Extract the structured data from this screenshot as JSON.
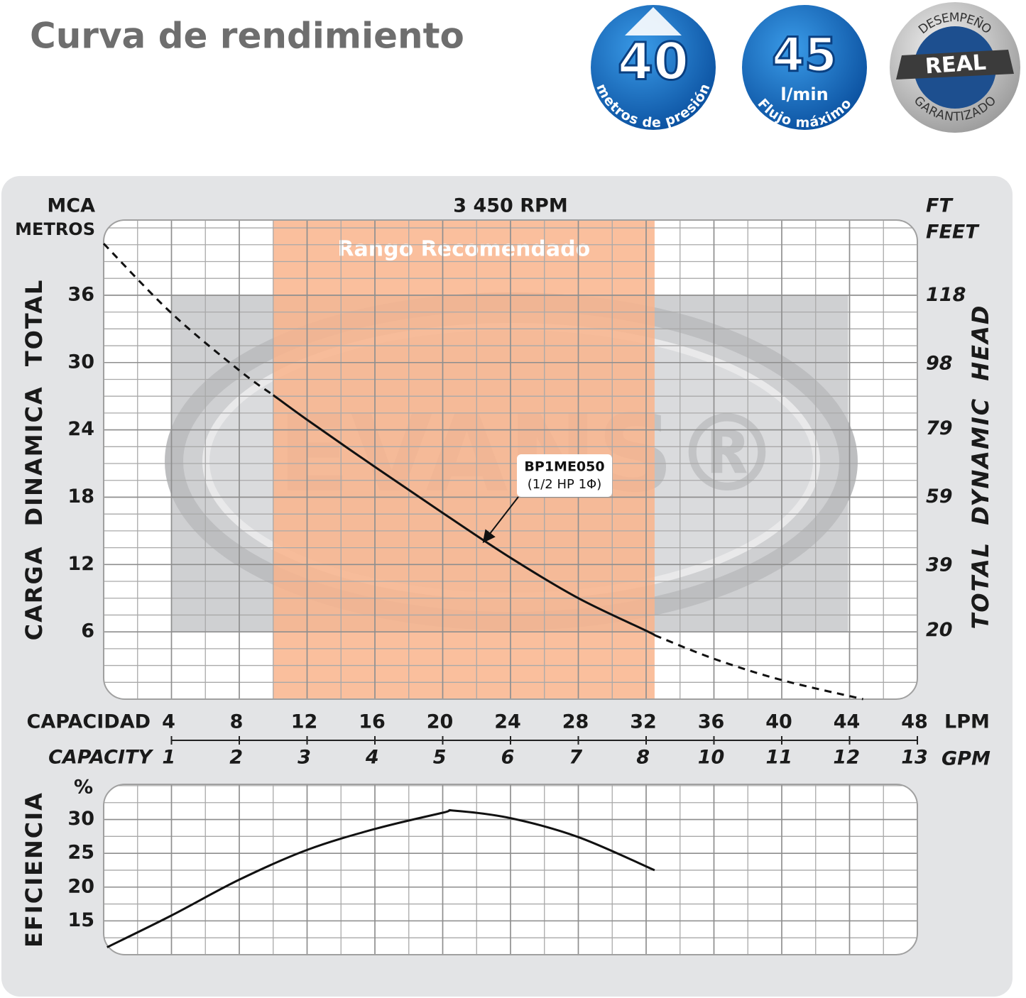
{
  "title": "Curva de rendimiento",
  "badges": [
    {
      "value": "40",
      "caption": "metros de presión"
    },
    {
      "value": "45",
      "unit": "l/min",
      "caption": "Flujo máximo"
    },
    {
      "top": "DESEMPEÑO",
      "value": "REAL",
      "caption": "GARANTIZADO"
    }
  ],
  "chart_data": [
    {
      "type": "line",
      "title": "3 450 RPM",
      "y_unit": "MCA",
      "y_unit_sub": "METROS",
      "ylabel": "CARGA DINAMICA TOTAL",
      "y2_unit": "FT",
      "y2_unit_sub": "FEET",
      "y2label": "TOTAL DYNAMIC HEAD",
      "xlabel": "CAPACIDAD",
      "x_unit": "LPM",
      "x2label": "CAPACITY",
      "x2_unit": "GPM",
      "xlim": [
        0,
        48
      ],
      "xticks": [
        4,
        8,
        12,
        16,
        20,
        24,
        28,
        32,
        36,
        40,
        44,
        48
      ],
      "x2lim": [
        0,
        12.68
      ],
      "x2ticks": [
        {
          "value": 1.06,
          "label": "1"
        },
        {
          "value": 2.11,
          "label": "2"
        },
        {
          "value": 3.17,
          "label": "3"
        },
        {
          "value": 4.23,
          "label": "4"
        },
        {
          "value": 5.28,
          "label": "5"
        },
        {
          "value": 6.34,
          "label": "6"
        },
        {
          "value": 7.4,
          "label": "7"
        },
        {
          "value": 8.45,
          "label": "8"
        },
        {
          "value": 9.51,
          "label": "10"
        },
        {
          "value": 10.57,
          "label": "11"
        },
        {
          "value": 11.62,
          "label": "12"
        },
        {
          "value": 12.68,
          "label": "13"
        }
      ],
      "ylim": [
        0,
        42.7
      ],
      "yticks": [
        6,
        12,
        18,
        24,
        30,
        36
      ],
      "y2lim": [
        0,
        140.1
      ],
      "y2ticks": [
        20,
        39,
        59,
        79,
        98,
        118
      ],
      "grid": true,
      "band": {
        "label": "Rango Recomendado",
        "from": 10,
        "to": 32.5,
        "color": "#f9b48c"
      },
      "watermark": "EVANS®",
      "annotation": {
        "lines": [
          "BP1ME050",
          "(1/2 HP 1Φ)"
        ],
        "x": 22.4,
        "y": 14.0
      },
      "series": [
        {
          "x": [
            0,
            4,
            8,
            10
          ],
          "values": [
            40.6,
            34.4,
            29.3,
            27.1
          ],
          "color": "#111111",
          "dash": true
        },
        {
          "x": [
            10,
            12,
            16,
            20,
            24,
            28,
            32,
            32.5
          ],
          "values": [
            27.1,
            24.9,
            20.7,
            16.6,
            12.6,
            9.0,
            6.1,
            5.7
          ],
          "color": "#111111",
          "dash": false
        },
        {
          "x": [
            32.5,
            36,
            40,
            44.8
          ],
          "values": [
            5.7,
            3.6,
            1.7,
            0
          ],
          "color": "#111111",
          "dash": true
        }
      ]
    },
    {
      "type": "line",
      "y_unit": "%",
      "ylabel": "EFICIENCIA",
      "xlim": [
        0,
        48
      ],
      "ylim": [
        10,
        35.2
      ],
      "yticks": [
        15,
        20,
        25,
        30
      ],
      "grid": true,
      "series": [
        {
          "x": [
            0.2,
            4,
            8,
            12,
            16,
            20,
            20.7,
            24,
            28,
            32.5
          ],
          "values": [
            11.1,
            15.8,
            21.1,
            25.5,
            28.6,
            31.0,
            31.3,
            30.2,
            27.4,
            22.5
          ],
          "color": "#111111",
          "dash": false
        }
      ]
    }
  ]
}
